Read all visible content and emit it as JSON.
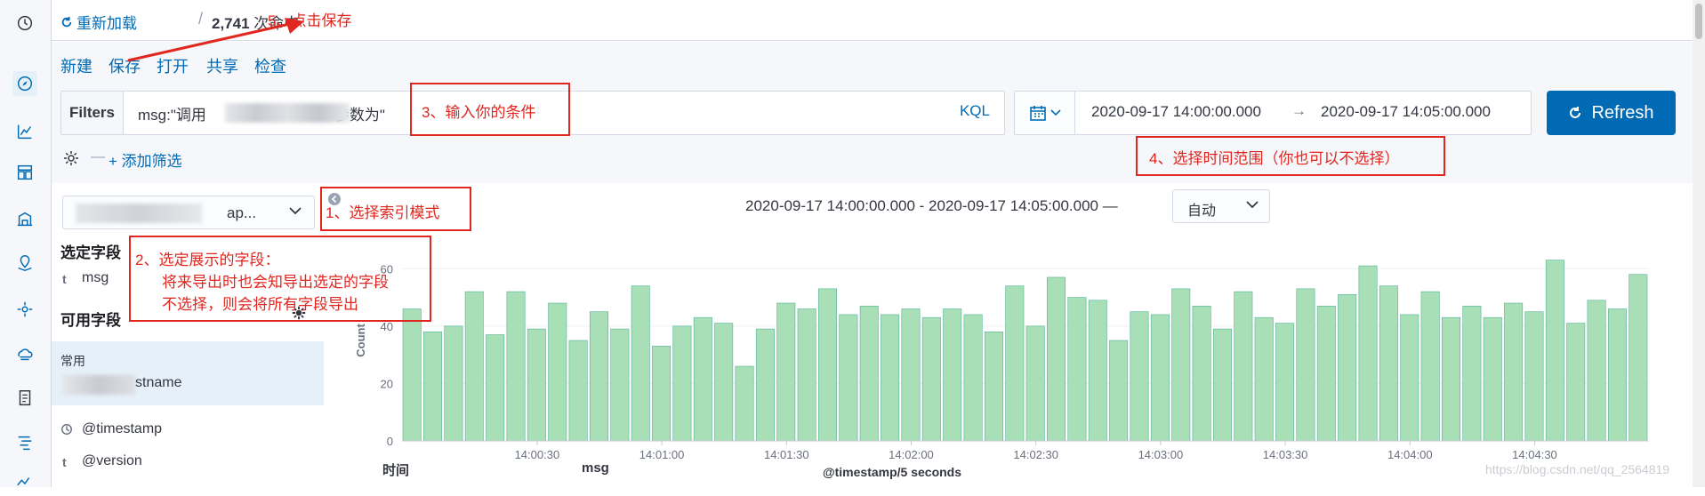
{
  "topbar": {
    "reload_label": "重新加载",
    "hits_count": "2,741",
    "hits_suffix": "次命中"
  },
  "menu": {
    "new": "新建",
    "save": "保存",
    "open": "打开",
    "share": "共享",
    "inspect": "检查"
  },
  "query": {
    "filters_label": "Filters",
    "query_prefix": "msg:\"调用",
    "query_suffix": "参数为\"",
    "language": "KQL",
    "add_filter": "+ 添加筛选"
  },
  "time": {
    "start": "2020-09-17 14:00:00.000",
    "arrow": "→",
    "end": "2020-09-17 14:05:00.000",
    "refresh_label": "Refresh",
    "range_text": "2020-09-17 14:00:00.000 - 2020-09-17 14:05:00.000 —",
    "interval": "自动"
  },
  "sidebar": {
    "index_pattern_suffix": "ap...",
    "selected_title": "选定字段",
    "selected_fields": [
      {
        "type": "t",
        "name": "msg"
      }
    ],
    "available_title": "可用字段",
    "common_label": "常用",
    "common_field_suffix": "stname",
    "other_fields": [
      {
        "type": "clock",
        "name": "@timestamp"
      },
      {
        "type": "t",
        "name": "@version"
      }
    ]
  },
  "table": {
    "col_time": "时间",
    "col_msg": "msg"
  },
  "watermark": "https://blog.csdn.net/qq_2564819",
  "annotations": {
    "step1": "1、选择索引模式",
    "step2_line1": "2、选定展示的字段：",
    "step2_line2": "将来导出时也会知导出选定的字段",
    "step2_line3": "不选择，则会将所有字段导出",
    "step3": "3、输入你的条件",
    "step4": "4、选择时间范围（你也可以不选择）",
    "step5": "5、点击保存"
  },
  "colors": {
    "accent": "#006bb4",
    "bar_fill": "#a9dfb7",
    "bar_stroke": "#54b399",
    "annotation": "#e0261f"
  },
  "chart_data": {
    "type": "bar",
    "ylabel": "Count",
    "xlabel": "@timestamp/5 seconds",
    "ylim": [
      0,
      70
    ],
    "y_ticks": [
      0,
      20,
      40,
      60
    ],
    "x_tick_labels": [
      "14:00:30",
      "14:01:00",
      "14:01:30",
      "14:02:00",
      "14:02:30",
      "14:03:00",
      "14:03:30",
      "14:04:00",
      "14:04:30"
    ],
    "x_tick_bar_index": [
      6,
      12,
      18,
      24,
      30,
      36,
      42,
      48,
      54
    ],
    "values": [
      46,
      38,
      40,
      52,
      37,
      52,
      39,
      48,
      35,
      45,
      39,
      54,
      33,
      40,
      43,
      41,
      26,
      39,
      48,
      46,
      53,
      44,
      47,
      44,
      46,
      43,
      46,
      44,
      38,
      54,
      40,
      57,
      50,
      49,
      35,
      45,
      44,
      53,
      47,
      39,
      52,
      43,
      41,
      53,
      47,
      51,
      61,
      54,
      44,
      52,
      43,
      47,
      43,
      48,
      45,
      63,
      41,
      49,
      46,
      58
    ]
  }
}
